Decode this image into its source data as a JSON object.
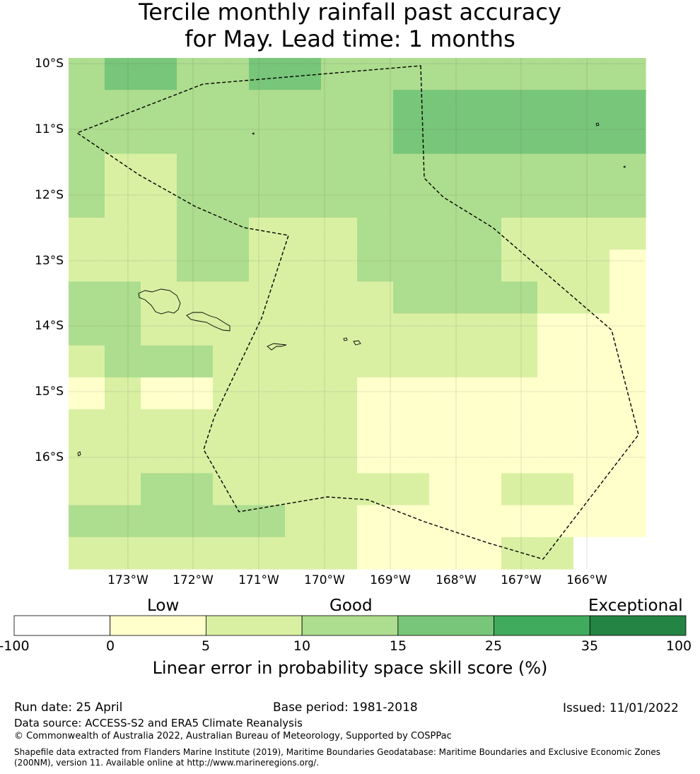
{
  "title": {
    "line1": "Tercile monthly rainfall past accuracy",
    "line2": "for May. Lead time: 1 months"
  },
  "map": {
    "lat_labels": [
      "10°S",
      "11°S",
      "12°S",
      "13°S",
      "14°S",
      "15°S",
      "16°S"
    ],
    "lon_labels": [
      "173°W",
      "172°W",
      "171°W",
      "170°W",
      "169°W",
      "168°W",
      "167°W",
      "166°W"
    ],
    "grid_levels": [
      [
        3,
        4,
        4,
        3,
        3,
        4,
        4,
        3,
        3,
        3,
        3,
        3,
        3,
        3,
        3,
        3
      ],
      [
        3,
        3,
        3,
        3,
        3,
        3,
        3,
        3,
        3,
        4,
        4,
        4,
        4,
        4,
        4,
        4
      ],
      [
        3,
        3,
        3,
        3,
        3,
        3,
        3,
        3,
        3,
        4,
        4,
        4,
        4,
        4,
        4,
        4
      ],
      [
        3,
        2,
        2,
        3,
        3,
        3,
        3,
        3,
        3,
        3,
        3,
        3,
        3,
        3,
        3,
        3
      ],
      [
        3,
        2,
        2,
        3,
        3,
        3,
        3,
        3,
        3,
        3,
        3,
        3,
        3,
        3,
        3,
        3
      ],
      [
        2,
        2,
        2,
        3,
        3,
        2,
        2,
        2,
        3,
        3,
        3,
        3,
        2,
        2,
        2,
        2
      ],
      [
        2,
        2,
        2,
        3,
        3,
        2,
        2,
        2,
        3,
        3,
        3,
        3,
        2,
        2,
        2,
        1
      ],
      [
        3,
        3,
        2,
        2,
        2,
        2,
        2,
        2,
        2,
        3,
        3,
        3,
        3,
        2,
        2,
        1
      ],
      [
        3,
        3,
        2,
        2,
        2,
        2,
        2,
        2,
        2,
        2,
        2,
        2,
        2,
        1,
        1,
        1
      ],
      [
        2,
        3,
        3,
        3,
        2,
        2,
        2,
        2,
        2,
        2,
        2,
        2,
        2,
        1,
        1,
        1
      ],
      [
        1,
        2,
        1,
        1,
        2,
        2,
        2,
        2,
        1,
        1,
        1,
        1,
        1,
        1,
        1,
        1
      ],
      [
        2,
        2,
        2,
        2,
        2,
        2,
        2,
        2,
        1,
        1,
        1,
        1,
        1,
        1,
        1,
        1
      ],
      [
        2,
        2,
        2,
        2,
        2,
        2,
        2,
        2,
        1,
        1,
        1,
        1,
        1,
        1,
        1,
        1
      ],
      [
        2,
        2,
        3,
        3,
        2,
        2,
        2,
        2,
        2,
        2,
        1,
        1,
        2,
        2,
        1,
        1
      ],
      [
        3,
        3,
        3,
        3,
        3,
        3,
        2,
        2,
        1,
        1,
        1,
        1,
        1,
        1,
        1,
        1
      ],
      [
        2,
        2,
        2,
        2,
        2,
        2,
        2,
        2,
        1,
        1,
        1,
        1,
        2,
        2,
        0,
        0
      ]
    ]
  },
  "colorbar": {
    "category_labels": [
      "Low",
      "Good",
      "Exceptional"
    ],
    "ticks": [
      "-100",
      "0",
      "5",
      "10",
      "15",
      "25",
      "35",
      "100"
    ],
    "colors": [
      "#ffffff",
      "#ffffcc",
      "#d9f0a3",
      "#addd8e",
      "#78c679",
      "#41ab5d",
      "#238443"
    ],
    "title": "Linear error in probability space skill score (%)"
  },
  "footer": {
    "run_date": "Run date: 25 April",
    "base_period": "Base period: 1981-2018",
    "issued": "Issued: 11/01/2022",
    "data_source": "Data source: ACCESS-S2 and ERA5 Climate Reanalysis",
    "copyright": "© Commonwealth of Australia 2022, Australian Bureau of Meteorology, Supported by COSPPac",
    "shapefile": "Shapefile data extracted from Flanders Marine Institute (2019), Maritime Boundaries Geodatabase: Maritime Boundaries and Exclusive Economic Zones (200NM), version 11. Available online at http://www.marineregions.org/."
  }
}
